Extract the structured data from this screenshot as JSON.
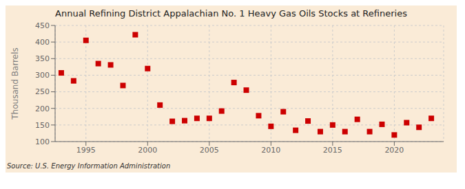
{
  "chart_data": {
    "type": "scatter",
    "title": "Annual Refining District Appalachian No. 1 Heavy Gas Oils Stocks at Refineries",
    "ylabel": "Thousand Barrels",
    "annotations": [
      "Source: U.S. Energy Information Administration"
    ],
    "x": [
      1993,
      1994,
      1995,
      1996,
      1997,
      1998,
      1999,
      2000,
      2001,
      2002,
      2003,
      2004,
      2005,
      2006,
      2007,
      2008,
      2009,
      2010,
      2011,
      2012,
      2013,
      2014,
      2015,
      2016,
      2017,
      2018,
      2019,
      2020,
      2021,
      2022,
      2023
    ],
    "values": [
      307,
      283,
      405,
      335,
      331,
      269,
      422,
      320,
      210,
      161,
      163,
      170,
      170,
      192,
      278,
      255,
      178,
      146,
      190,
      134,
      162,
      130,
      150,
      130,
      167,
      130,
      152,
      120,
      157,
      143,
      170
    ],
    "color": "#cc0000",
    "marker": "square",
    "xlim": [
      1992.5,
      2024
    ],
    "xticks": [
      1995,
      2000,
      2005,
      2010,
      2015,
      2020
    ],
    "ylim": [
      100,
      450
    ],
    "yticks": [
      100,
      150,
      200,
      250,
      300,
      350,
      400,
      450
    ],
    "grid": true
  }
}
